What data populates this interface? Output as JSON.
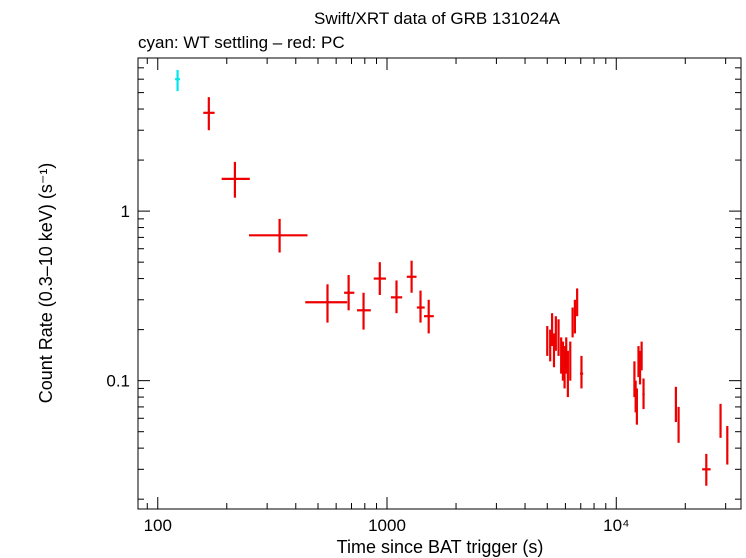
{
  "chart_data": {
    "type": "scatter",
    "title": "Swift/XRT data of GRB 131024A",
    "subtitle": "cyan: WT settling – red: PC",
    "xlabel": "Time since BAT trigger (s)",
    "ylabel": "Count Rate (0.3–10 keV) (s⁻¹)",
    "xscale": "log",
    "yscale": "log",
    "xlim": [
      82,
      35000
    ],
    "ylim": [
      0.0175,
      8.0
    ],
    "grid": false,
    "x_ticks": [
      {
        "value": 100,
        "label": "100"
      },
      {
        "value": 1000,
        "label": "1000"
      },
      {
        "value": 10000,
        "label": "10⁴"
      }
    ],
    "y_ticks": [
      {
        "value": 0.1,
        "label": "0.1"
      },
      {
        "value": 1,
        "label": "1"
      }
    ],
    "colors": {
      "wt": "#00e5ee",
      "pc": "#ee0000"
    },
    "series": [
      {
        "name": "WT settling",
        "color": "#00e5ee",
        "points": [
          {
            "x": 122,
            "y": 6.0,
            "xerr": [
              3,
              3
            ],
            "yerr": [
              0.9,
              0.8
            ]
          }
        ]
      },
      {
        "name": "PC",
        "color": "#ee0000",
        "points": [
          {
            "x": 167,
            "y": 3.8,
            "xerr": [
              9,
              10
            ],
            "yerr": [
              0.8,
              0.9
            ]
          },
          {
            "x": 217,
            "y": 1.55,
            "xerr": [
              27,
              35
            ],
            "yerr": [
              0.35,
              0.4
            ]
          },
          {
            "x": 340,
            "y": 0.72,
            "xerr": [
              90,
              110
            ],
            "yerr": [
              0.15,
              0.18
            ]
          },
          {
            "x": 550,
            "y": 0.29,
            "xerr": [
              110,
              120
            ],
            "yerr": [
              0.07,
              0.08
            ]
          },
          {
            "x": 680,
            "y": 0.33,
            "xerr": [
              30,
              40
            ],
            "yerr": [
              0.07,
              0.09
            ]
          },
          {
            "x": 790,
            "y": 0.26,
            "xerr": [
              50,
              60
            ],
            "yerr": [
              0.06,
              0.07
            ]
          },
          {
            "x": 930,
            "y": 0.4,
            "xerr": [
              55,
              60
            ],
            "yerr": [
              0.08,
              0.1
            ]
          },
          {
            "x": 1100,
            "y": 0.31,
            "xerr": [
              60,
              65
            ],
            "yerr": [
              0.06,
              0.08
            ]
          },
          {
            "x": 1280,
            "y": 0.41,
            "xerr": [
              60,
              65
            ],
            "yerr": [
              0.08,
              0.1
            ]
          },
          {
            "x": 1400,
            "y": 0.27,
            "xerr": [
              50,
              60
            ],
            "yerr": [
              0.05,
              0.07
            ]
          },
          {
            "x": 1520,
            "y": 0.24,
            "xerr": [
              70,
              80
            ],
            "yerr": [
              0.05,
              0.06
            ]
          },
          {
            "x": 5000,
            "y": 0.17,
            "xerr": [
              40,
              40
            ],
            "yerr": [
              0.03,
              0.04
            ]
          },
          {
            "x": 5150,
            "y": 0.16,
            "xerr": [
              40,
              40
            ],
            "yerr": [
              0.03,
              0.04
            ]
          },
          {
            "x": 5250,
            "y": 0.2,
            "xerr": [
              40,
              40
            ],
            "yerr": [
              0.04,
              0.05
            ]
          },
          {
            "x": 5350,
            "y": 0.15,
            "xerr": [
              40,
              40
            ],
            "yerr": [
              0.03,
              0.04
            ]
          },
          {
            "x": 5450,
            "y": 0.19,
            "xerr": [
              40,
              40
            ],
            "yerr": [
              0.04,
              0.05
            ]
          },
          {
            "x": 5600,
            "y": 0.18,
            "xerr": [
              40,
              40
            ],
            "yerr": [
              0.04,
              0.05
            ]
          },
          {
            "x": 5750,
            "y": 0.14,
            "xerr": [
              40,
              40
            ],
            "yerr": [
              0.03,
              0.04
            ]
          },
          {
            "x": 5850,
            "y": 0.13,
            "xerr": [
              40,
              40
            ],
            "yerr": [
              0.03,
              0.04
            ]
          },
          {
            "x": 5950,
            "y": 0.12,
            "xerr": [
              40,
              40
            ],
            "yerr": [
              0.03,
              0.04
            ]
          },
          {
            "x": 6050,
            "y": 0.14,
            "xerr": [
              40,
              40
            ],
            "yerr": [
              0.03,
              0.04
            ]
          },
          {
            "x": 6150,
            "y": 0.11,
            "xerr": [
              40,
              40
            ],
            "yerr": [
              0.03,
              0.04
            ]
          },
          {
            "x": 6300,
            "y": 0.13,
            "xerr": [
              40,
              40
            ],
            "yerr": [
              0.03,
              0.04
            ]
          },
          {
            "x": 6450,
            "y": 0.22,
            "xerr": [
              40,
              40
            ],
            "yerr": [
              0.04,
              0.05
            ]
          },
          {
            "x": 6600,
            "y": 0.24,
            "xerr": [
              40,
              40
            ],
            "yerr": [
              0.05,
              0.06
            ]
          },
          {
            "x": 6750,
            "y": 0.29,
            "xerr": [
              40,
              40
            ],
            "yerr": [
              0.05,
              0.06
            ]
          },
          {
            "x": 7050,
            "y": 0.11,
            "xerr": [
              100,
              120
            ],
            "yerr": [
              0.02,
              0.03
            ]
          },
          {
            "x": 12000,
            "y": 0.1,
            "xerr": [
              80,
              80
            ],
            "yerr": [
              0.02,
              0.03
            ]
          },
          {
            "x": 12150,
            "y": 0.08,
            "xerr": [
              80,
              80
            ],
            "yerr": [
              0.015,
              0.02
            ]
          },
          {
            "x": 12300,
            "y": 0.07,
            "xerr": [
              80,
              80
            ],
            "yerr": [
              0.015,
              0.02
            ]
          },
          {
            "x": 12500,
            "y": 0.13,
            "xerr": [
              80,
              80
            ],
            "yerr": [
              0.025,
              0.03
            ]
          },
          {
            "x": 12700,
            "y": 0.12,
            "xerr": [
              80,
              80
            ],
            "yerr": [
              0.025,
              0.03
            ]
          },
          {
            "x": 12900,
            "y": 0.14,
            "xerr": [
              80,
              80
            ],
            "yerr": [
              0.025,
              0.03
            ]
          },
          {
            "x": 13150,
            "y": 0.083,
            "xerr": [
              150,
              150
            ],
            "yerr": [
              0.015,
              0.02
            ]
          },
          {
            "x": 18200,
            "y": 0.072,
            "xerr": [
              150,
              150
            ],
            "yerr": [
              0.015,
              0.02
            ]
          },
          {
            "x": 18700,
            "y": 0.055,
            "xerr": [
              150,
              150
            ],
            "yerr": [
              0.012,
              0.015
            ]
          },
          {
            "x": 24700,
            "y": 0.03,
            "xerr": [
              1000,
              1100
            ],
            "yerr": [
              0.006,
              0.007
            ]
          },
          {
            "x": 28500,
            "y": 0.058,
            "xerr": [
              200,
              200
            ],
            "yerr": [
              0.012,
              0.015
            ]
          },
          {
            "x": 30500,
            "y": 0.042,
            "xerr": [
              200,
              200
            ],
            "yerr": [
              0.01,
              0.012
            ]
          }
        ]
      }
    ]
  }
}
